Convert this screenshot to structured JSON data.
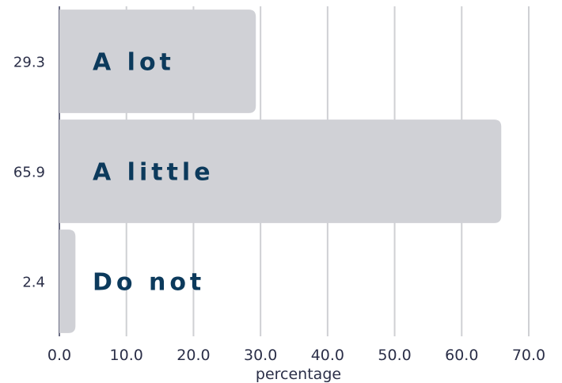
{
  "chart_data": {
    "type": "bar",
    "orientation": "horizontal",
    "categories": [
      "A lot",
      "A little",
      "Do not"
    ],
    "values": [
      29.3,
      65.9,
      2.4
    ],
    "value_labels": [
      "29.3",
      "65.9",
      "2.4"
    ],
    "xlabel": "percentage",
    "ylabel": "",
    "xlim": [
      0,
      70
    ],
    "xticks": [
      "0.0",
      "10.0",
      "20.0",
      "30.0",
      "40.0",
      "50.0",
      "60.0",
      "70.0"
    ],
    "grid": "vertical",
    "legend": "none",
    "colors": {
      "bar": "#d0d1d6",
      "category_text": "#0c3a5c",
      "grid": "#cfd0d4",
      "text": "#2b2f48"
    }
  }
}
